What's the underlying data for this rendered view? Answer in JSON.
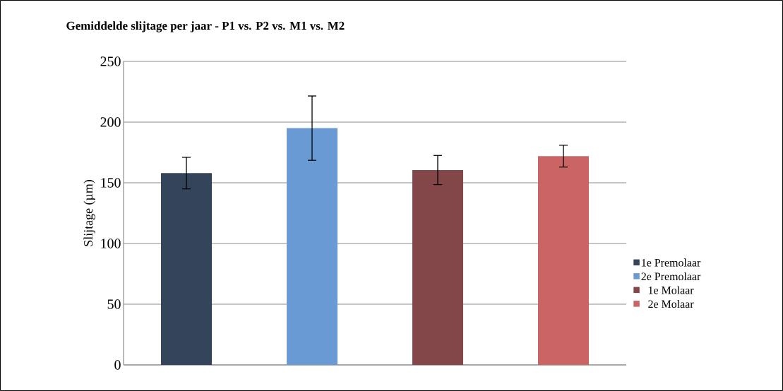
{
  "chart_data": {
    "type": "bar",
    "title": "Gemiddelde slijtage per jaar - P1 vs. P2 vs. M1 vs. M2",
    "ylabel": "Slijtage (µm)",
    "categories": [
      null,
      null,
      null,
      null
    ],
    "series": [
      {
        "name": "1e Premolaar",
        "color": "#34445a",
        "values": [
          158,
          null,
          null,
          null
        ],
        "errors": [
          13,
          null,
          null,
          null
        ]
      },
      {
        "name": "2e Premolaar",
        "color": "#6a9ad4",
        "values": [
          null,
          195,
          null,
          null
        ],
        "errors": [
          null,
          26.5,
          null,
          null
        ]
      },
      {
        "name": "1e Molaar",
        "color": "#83474a",
        "values": [
          null,
          null,
          160.5,
          null
        ],
        "errors": [
          null,
          null,
          12,
          null
        ]
      },
      {
        "name": "2e Molaar",
        "color": "#cb6464",
        "values": [
          null,
          null,
          null,
          172
        ],
        "errors": [
          null,
          null,
          null,
          9
        ]
      }
    ],
    "ylim": [
      0,
      250
    ],
    "yticks": [
      0,
      50,
      100,
      150,
      200,
      250
    ],
    "grid": "y",
    "legend": "right"
  }
}
